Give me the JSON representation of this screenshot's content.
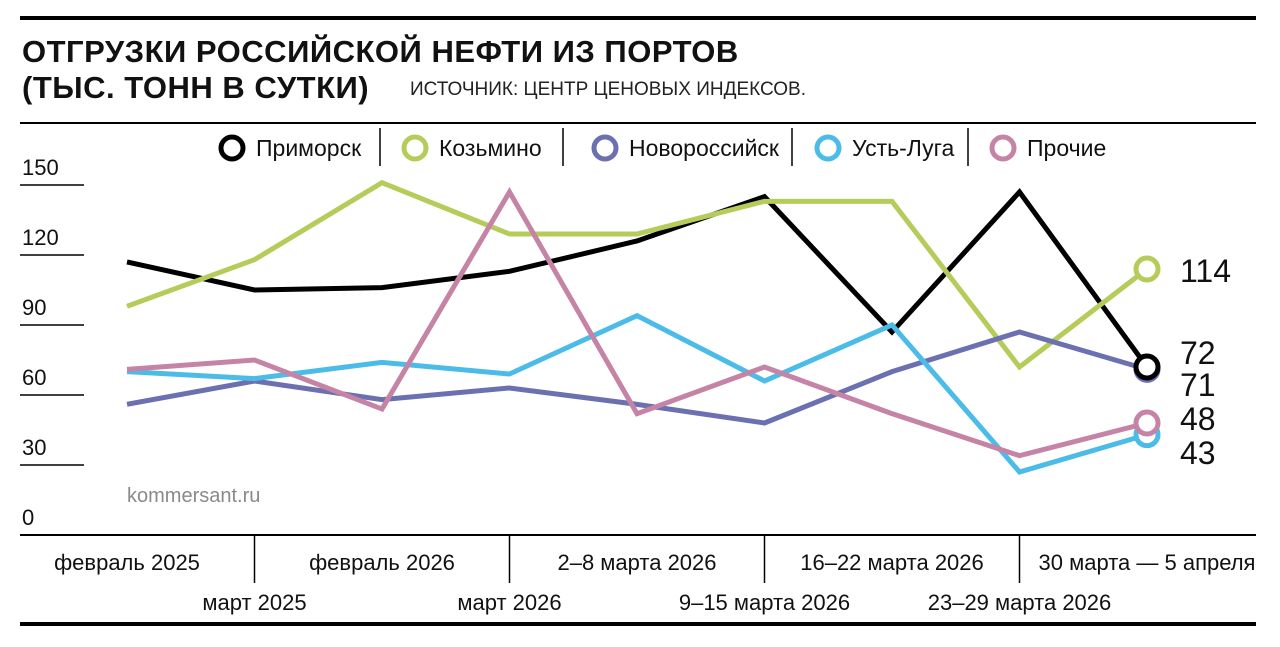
{
  "title_line1": "ОТГРУЗКИ РОССИЙСКОЙ НЕФТИ ИЗ ПОРТОВ",
  "title_line2": "(ТЫС. ТОНН В СУТКИ)",
  "source": "ИСТОЧНИК: ЦЕНТР ЦЕНОВЫХ ИНДЕКСОВ.",
  "watermark": "kommersant.ru",
  "chart_data": {
    "type": "line",
    "title": "ОТГРУЗКИ РОССИЙСКОЙ НЕФТИ ИЗ ПОРТОВ (ТЫС. ТОНН В СУТКИ)",
    "categories": [
      "февраль 2025",
      "март 2025",
      "февраль 2026",
      "март 2026",
      "2–8 марта 2026",
      "9–15 марта 2026",
      "16–22 марта 2026",
      "23–29 марта 2026",
      "30 марта — 5 апреля"
    ],
    "yticks": [
      0,
      30,
      60,
      90,
      120,
      150
    ],
    "ylim": [
      0,
      150
    ],
    "grid": false,
    "legend_position": "top",
    "series": [
      {
        "name": "Приморск",
        "color": "#000000",
        "values": [
          117,
          105,
          106,
          113,
          126,
          145,
          87,
          147,
          72
        ],
        "end_label": "72"
      },
      {
        "name": "Козьмино",
        "color": "#b5cc5a",
        "values": [
          98,
          118,
          151,
          129,
          129,
          143,
          143,
          72,
          114
        ],
        "end_label": "114"
      },
      {
        "name": "Новороссийск",
        "color": "#6b70b0",
        "values": [
          56,
          66,
          58,
          63,
          56,
          48,
          70,
          87,
          71
        ],
        "end_label": "71"
      },
      {
        "name": "Усть-Луга",
        "color": "#4bbce8",
        "values": [
          70,
          67,
          74,
          69,
          94,
          66,
          90,
          27,
          43
        ],
        "end_label": "43"
      },
      {
        "name": "Прочие",
        "color": "#c584a6",
        "values": [
          71,
          75,
          54,
          147,
          52,
          72,
          52,
          34,
          48
        ],
        "end_label": "48"
      }
    ]
  }
}
